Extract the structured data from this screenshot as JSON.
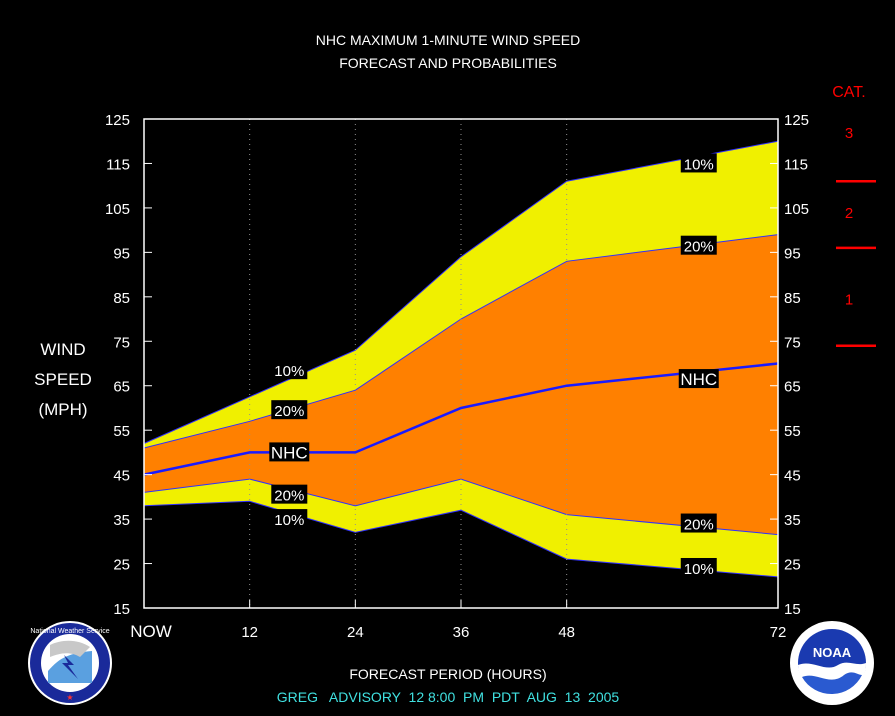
{
  "chart_data": {
    "type": "area",
    "title": "NHC MAXIMUM 1-MINUTE WIND SPEED",
    "subtitle": "FORECAST AND PROBABILITIES",
    "ylabel": [
      "WIND",
      "SPEED",
      "(MPH)"
    ],
    "xlabel": "FORECAST PERIOD (HOURS)",
    "footer": "GREG   ADVISORY  12 8:00  PM  PDT  AUG  13  2005",
    "ylim": [
      15,
      125
    ],
    "xlim": [
      0,
      72
    ],
    "grid": "vertical dotted",
    "x_ticks": [
      {
        "v": 0,
        "label": "NOW"
      },
      {
        "v": 12,
        "label": "12"
      },
      {
        "v": 24,
        "label": "24"
      },
      {
        "v": 36,
        "label": "36"
      },
      {
        "v": 48,
        "label": "48"
      },
      {
        "v": 72,
        "label": "72"
      }
    ],
    "y_ticks": [
      15,
      25,
      35,
      45,
      55,
      65,
      75,
      85,
      95,
      105,
      115,
      125
    ],
    "x": [
      0,
      12,
      24,
      36,
      48,
      72
    ],
    "bands": {
      "upper10": [
        52,
        62.5,
        73,
        94,
        111,
        120
      ],
      "upper20": [
        51,
        57,
        64,
        80,
        93,
        99
      ],
      "lower20": [
        41,
        44,
        38,
        44,
        36,
        31.5
      ],
      "lower10": [
        38,
        39,
        32,
        37,
        26,
        22
      ]
    },
    "series": [
      {
        "name": "NHC",
        "x": [
          0,
          12,
          24,
          36,
          48,
          72
        ],
        "values": [
          45,
          50,
          50,
          60,
          65,
          70
        ]
      }
    ],
    "annotations": [
      {
        "text": "10%",
        "x": 16.5,
        "y": 68.5
      },
      {
        "text": "20%",
        "x": 16.5,
        "y": 59.5
      },
      {
        "text": "NHC",
        "x": 16.5,
        "y": 50
      },
      {
        "text": "20%",
        "x": 16.5,
        "y": 40.5
      },
      {
        "text": "10%",
        "x": 16.5,
        "y": 35
      },
      {
        "text": "10%",
        "x": 63,
        "y": 115
      },
      {
        "text": "20%",
        "x": 63,
        "y": 96.5
      },
      {
        "text": "NHC",
        "x": 63,
        "y": 66.5
      },
      {
        "text": "20%",
        "x": 63,
        "y": 34
      },
      {
        "text": "10%",
        "x": 63,
        "y": 24
      }
    ],
    "category_scale": {
      "title": "CAT.",
      "labels": [
        {
          "text": "3",
          "y": 123
        },
        {
          "text": "2",
          "y": 105
        },
        {
          "text": "1",
          "y": 85.5
        }
      ],
      "boundaries": [
        111,
        96,
        74
      ]
    },
    "colors": {
      "background": "#000000",
      "plot_border": "#ffffff",
      "yellow": "#f0f000",
      "orange": "#ff8000",
      "nhc_line": "#1a1aff",
      "band_edge": "#3030ff",
      "text": "#ffffff",
      "footer_text": "#40e0e0",
      "category": "#ff0000",
      "grid": "#909090"
    }
  },
  "logos": {
    "left": "National Weather Service",
    "right": "NOAA"
  }
}
